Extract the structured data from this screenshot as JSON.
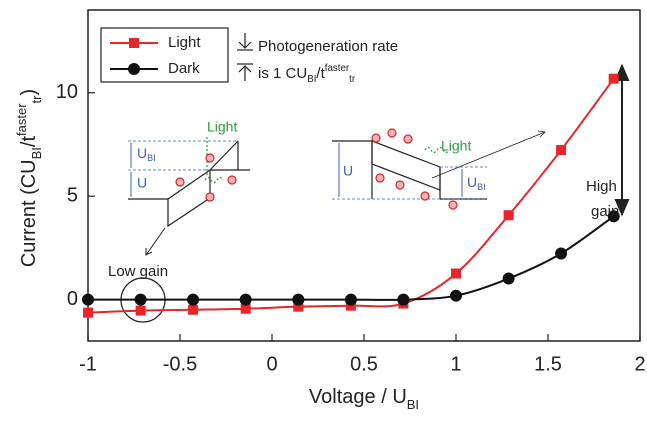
{
  "chart_data": {
    "type": "line",
    "x_label": [
      {
        "text": "Voltage / U",
        "style": "normal"
      },
      {
        "text": "BI",
        "style": "sub"
      }
    ],
    "y_label": [
      {
        "text": "Current (CU",
        "style": "normal"
      },
      {
        "text": "BI",
        "style": "sub"
      },
      {
        "text": "/t",
        "style": "normal"
      },
      {
        "text": "faster",
        "style": "sup"
      },
      {
        "text": "tr",
        "style": "sub"
      },
      {
        "text": ")",
        "style": "normal"
      }
    ],
    "x": [
      -1,
      -0.714,
      -0.429,
      -0.143,
      0.143,
      0.429,
      0.714,
      1.0,
      1.286,
      1.571,
      1.857
    ],
    "series": [
      {
        "name": "Light",
        "color": "#e8262a",
        "marker": "square",
        "values": [
          -0.63,
          -0.53,
          -0.49,
          -0.44,
          -0.34,
          -0.29,
          -0.19,
          1.26,
          4.08,
          7.23,
          10.68
        ]
      },
      {
        "name": "Dark",
        "color": "#111111",
        "marker": "circle",
        "values": [
          0,
          0,
          0,
          0,
          0,
          0,
          0,
          0.19,
          1.02,
          2.23,
          4.03
        ]
      }
    ],
    "xlim": [
      -1,
      2
    ],
    "xticks": [
      -1,
      -0.5,
      0,
      0.5,
      1,
      1.5,
      2
    ],
    "ylim": [
      -2,
      14
    ],
    "yticks": [
      0,
      5,
      10
    ],
    "annotations": {
      "photogeneration": [
        [
          {
            "text": "Photogeneration rate",
            "style": "normal"
          }
        ],
        [
          {
            "text": "is 1 CU",
            "style": "normal"
          },
          {
            "text": "BI",
            "style": "sub"
          },
          {
            "text": "/t",
            "style": "normal"
          },
          {
            "text": "faster",
            "style": "sup"
          },
          {
            "text": "tr",
            "style": "sub"
          }
        ]
      ],
      "low_gain": "Low gain",
      "high_gain": [
        "High",
        "gain"
      ],
      "inset_left": {
        "light": "Light",
        "ubi": [
          {
            "text": "U",
            "style": "normal"
          },
          {
            "text": "BI",
            "style": "sub"
          }
        ],
        "u": "U"
      },
      "inset_right": {
        "light": "Light",
        "ubi": [
          {
            "text": "U",
            "style": "normal"
          },
          {
            "text": "BI",
            "style": "sub"
          }
        ],
        "u": "U"
      }
    }
  }
}
